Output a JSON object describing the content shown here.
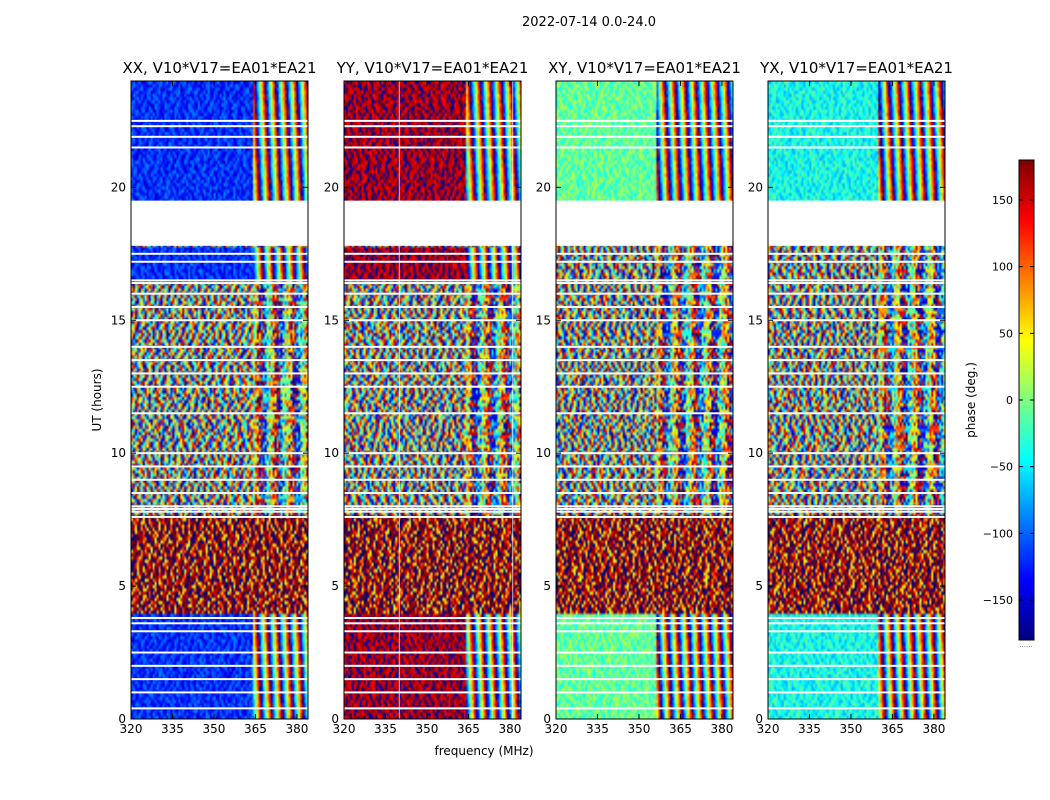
{
  "chart_data": {
    "type": "heatmap",
    "suptitle": "2022-07-14 0.0-24.0",
    "xlabel": "frequency (MHz)",
    "ylabel": "UT (hours)",
    "xlim": [
      320,
      384
    ],
    "ylim": [
      0,
      24
    ],
    "xticks": [
      320,
      335,
      350,
      365,
      380
    ],
    "yticks": [
      0,
      5,
      10,
      15,
      20
    ],
    "colorbar": {
      "label": "phase (deg.)",
      "vmin": -180,
      "vmax": 180,
      "ticks": [
        -150,
        -100,
        -50,
        0,
        50,
        100,
        150
      ],
      "tick_labels": [
        "−150",
        "−100",
        "−50",
        "0",
        "50",
        "100",
        "150"
      ],
      "colors": [
        "#00007f",
        "#0000ff",
        "#007fff",
        "#00ffff",
        "#7fff7f",
        "#ffff00",
        "#ff7f00",
        "#ff0000",
        "#7f0000"
      ],
      "footer": "......"
    },
    "flagged_rows_hours": [
      0.4,
      1.0,
      1.5,
      2.0,
      2.5,
      3.3,
      3.6,
      3.8,
      7.6,
      7.8,
      7.9,
      8.0,
      8.5,
      9.0,
      9.5,
      10.0,
      11.5,
      12.5,
      13.0,
      13.5,
      14.0,
      15.0,
      15.5,
      16.0,
      16.4,
      16.5,
      17.2,
      17.5,
      21.5,
      21.9,
      22.3,
      22.5
    ],
    "flagged_bands_hours": [
      [
        17.8,
        19.5
      ]
    ],
    "panels": [
      {
        "title": "XX, V10*V17=EA01*EA21",
        "base_phase_deg": -120,
        "coherent_bands_hours": [
          [
            0,
            4.0
          ],
          [
            16.5,
            17.8
          ],
          [
            19.5,
            24
          ]
        ],
        "fringe_start_mhz": 364,
        "flagged_columns_mhz": []
      },
      {
        "title": "YY, V10*V17=EA01*EA21",
        "base_phase_deg": 165,
        "coherent_bands_hours": [
          [
            0,
            4.0
          ],
          [
            16.5,
            17.8
          ],
          [
            19.5,
            24
          ]
        ],
        "fringe_start_mhz": 364,
        "flagged_columns_mhz": [
          340,
          381
        ]
      },
      {
        "title": "XY, V10*V17=EA01*EA21",
        "base_phase_deg": -10,
        "coherent_bands_hours": [
          [
            0,
            4.0
          ],
          [
            19.5,
            24
          ]
        ],
        "fringe_start_mhz": 356,
        "flagged_columns_mhz": []
      },
      {
        "title": "YX, V10*V17=EA01*EA21",
        "base_phase_deg": -40,
        "coherent_bands_hours": [
          [
            0,
            4.0
          ],
          [
            19.5,
            24
          ]
        ],
        "fringe_start_mhz": 360,
        "flagged_columns_mhz": []
      }
    ]
  }
}
